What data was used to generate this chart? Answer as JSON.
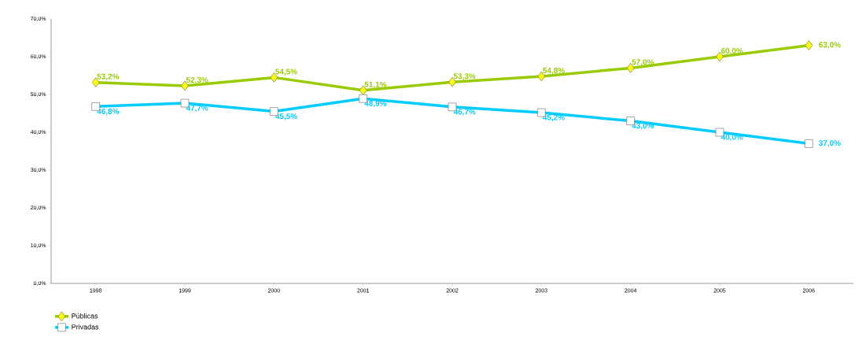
{
  "chart_data": {
    "type": "line",
    "categories": [
      "1998",
      "1999",
      "2000",
      "2001",
      "2002",
      "2003",
      "2004",
      "2005",
      "2006"
    ],
    "series": [
      {
        "name": "Públicas",
        "color": "#99cc00",
        "marker": "diamond",
        "values": [
          53.2,
          52.3,
          54.5,
          51.1,
          53.3,
          54.8,
          57.0,
          60.0,
          63.0
        ],
        "value_labels": [
          "53,2%",
          "52,3%",
          "54,5%",
          "51,1%",
          "53,3%",
          "54,8%",
          "57,0%",
          "60,0%",
          "63,0%"
        ]
      },
      {
        "name": "Privadas",
        "color": "#00ccff",
        "marker": "square",
        "values": [
          46.8,
          47.7,
          45.5,
          48.9,
          46.7,
          45.2,
          43.0,
          40.0,
          37.0
        ],
        "value_labels": [
          "46,8%",
          "47,7%",
          "45,5%",
          "48,9%",
          "46,7%",
          "45,2%",
          "43,0%",
          "40,0%",
          "37,0%"
        ]
      }
    ],
    "ylim": [
      0,
      70
    ],
    "yticks": [
      {
        "value": 0,
        "label": "0,0%"
      },
      {
        "value": 10,
        "label": "10,0%"
      },
      {
        "value": 20,
        "label": "20,0%"
      },
      {
        "value": 30,
        "label": "30,0%"
      },
      {
        "value": 40,
        "label": "40,0%"
      },
      {
        "value": 50,
        "label": "50,0%"
      },
      {
        "value": 60,
        "label": "60,0%"
      },
      {
        "value": 70,
        "label": "70,0%"
      }
    ],
    "legend": "bottom left",
    "grid": false
  }
}
